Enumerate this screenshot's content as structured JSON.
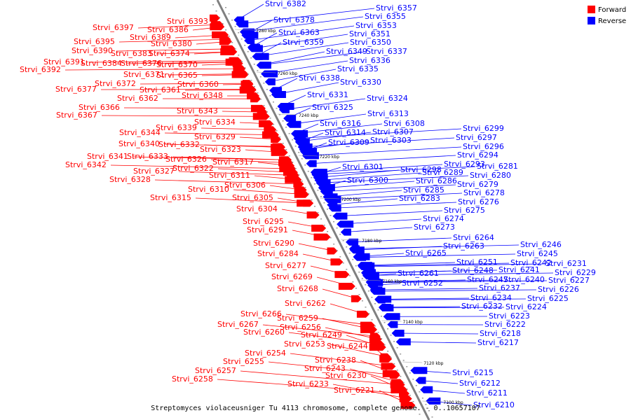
{
  "legend": [
    {
      "label": "Forward",
      "color": "#ff0000"
    },
    {
      "label": "Reverse",
      "color": "#0000ff"
    }
  ],
  "caption": "Streptomyces violaceusniger Tu 4113 chromosome, complete genome. - 0..10657107",
  "colors": {
    "forward": "#ff0000",
    "reverse": "#0000ff",
    "axis": "#808080"
  },
  "scale_ticks": [
    "7280 kbp",
    "7260 kbp",
    "7240 kbp",
    "7220 kbp",
    "7200 kbp",
    "7180 kbp",
    "7160 kbp",
    "7140 kbp",
    "7120 kbp",
    "7100 kbp"
  ],
  "forward_genes": [
    "Strvi_6393",
    "Strvi_6397",
    "Strvi_6386",
    "Strvi_6389",
    "Strvi_6395",
    "Strvi_6380",
    "Strvi_6390",
    "Strvi_6383",
    "Strvi_6374",
    "Strvi_6391",
    "Strvi_6384",
    "Strvi_6376",
    "Strvi_6370",
    "Strvi_6392",
    "Strvi_6371",
    "Strvi_6365",
    "Strvi_6372",
    "Strvi_6360",
    "Strvi_6377",
    "Strvi_6361",
    "Strvi_6362",
    "Strvi_6348",
    "Strvi_6366",
    "Strvi_6367",
    "Strvi_6343",
    "Strvi_6339",
    "Strvi_6334",
    "Strvi_6344",
    "Strvi_6329",
    "Strvi_6340",
    "Strvi_6332",
    "Strvi_6323",
    "Strvi_6341",
    "Strvi_6333",
    "Strvi_6326",
    "Strvi_6342",
    "Strvi_6317",
    "Strvi_6327",
    "Strvi_6322",
    "Strvi_6311",
    "Strvi_6328",
    "Strvi_6306",
    "Strvi_6310",
    "Strvi_6305",
    "Strvi_6315",
    "Strvi_6304",
    "Strvi_6295",
    "Strvi_6291",
    "Strvi_6290",
    "Strvi_6284",
    "Strvi_6277",
    "Strvi_6269",
    "Strvi_6268",
    "Strvi_6262",
    "Strvi_6266",
    "Strvi_6259",
    "Strvi_6267",
    "Strvi_6256",
    "Strvi_6260",
    "Strvi_6249",
    "Strvi_6253",
    "Strvi_6244",
    "Strvi_6254",
    "Strvi_6238",
    "Strvi_6255",
    "Strvi_6243",
    "Strvi_6257",
    "Strvi_6230",
    "Strvi_6258",
    "Strvi_6233",
    "Strvi_6221"
  ],
  "reverse_genes": [
    "Strvi_6382",
    "Strvi_6357",
    "Strvi_6355",
    "Strvi_6378",
    "Strvi_6353",
    "Strvi_6363",
    "Strvi_6351",
    "Strvi_6359",
    "Strvi_6350",
    "Strvi_6349",
    "Strvi_6337",
    "Strvi_6336",
    "Strvi_6335",
    "Strvi_6338",
    "Strvi_6330",
    "Strvi_6331",
    "Strvi_6324",
    "Strvi_6325",
    "Strvi_6313",
    "Strvi_6316",
    "Strvi_6308",
    "Strvi_6314",
    "Strvi_6307",
    "Strvi_6309",
    "Strvi_6303",
    "Strvi_6299",
    "Strvi_6297",
    "Strvi_6296",
    "Strvi_6294",
    "Strvi_6301",
    "Strvi_6298",
    "Strvi_6293",
    "Strvi_6281",
    "Strvi_6289",
    "Strvi_6280",
    "Strvi_6300",
    "Strvi_6286",
    "Strvi_6279",
    "Strvi_6285",
    "Strvi_6278",
    "Strvi_6283",
    "Strvi_6276",
    "Strvi_6275",
    "Strvi_6274",
    "Strvi_6273",
    "Strvi_6264",
    "Strvi_6263",
    "Strvi_6265",
    "Strvi_6246",
    "Strvi_6245",
    "Strvi_6251",
    "Strvi_6242",
    "Strvi_6231",
    "Strvi_6248",
    "Strvi_6241",
    "Strvi_6229",
    "Strvi_6261",
    "Strvi_6247",
    "Strvi_6240",
    "Strvi_6227",
    "Strvi_6252",
    "Strvi_6237",
    "Strvi_6226",
    "Strvi_6234",
    "Strvi_6225",
    "Strvi_6232",
    "Strvi_6224",
    "Strvi_6223",
    "Strvi_6222",
    "Strvi_6218",
    "Strvi_6217",
    "Strvi_6215",
    "Strvi_6212",
    "Strvi_6211",
    "Strvi_6210"
  ]
}
